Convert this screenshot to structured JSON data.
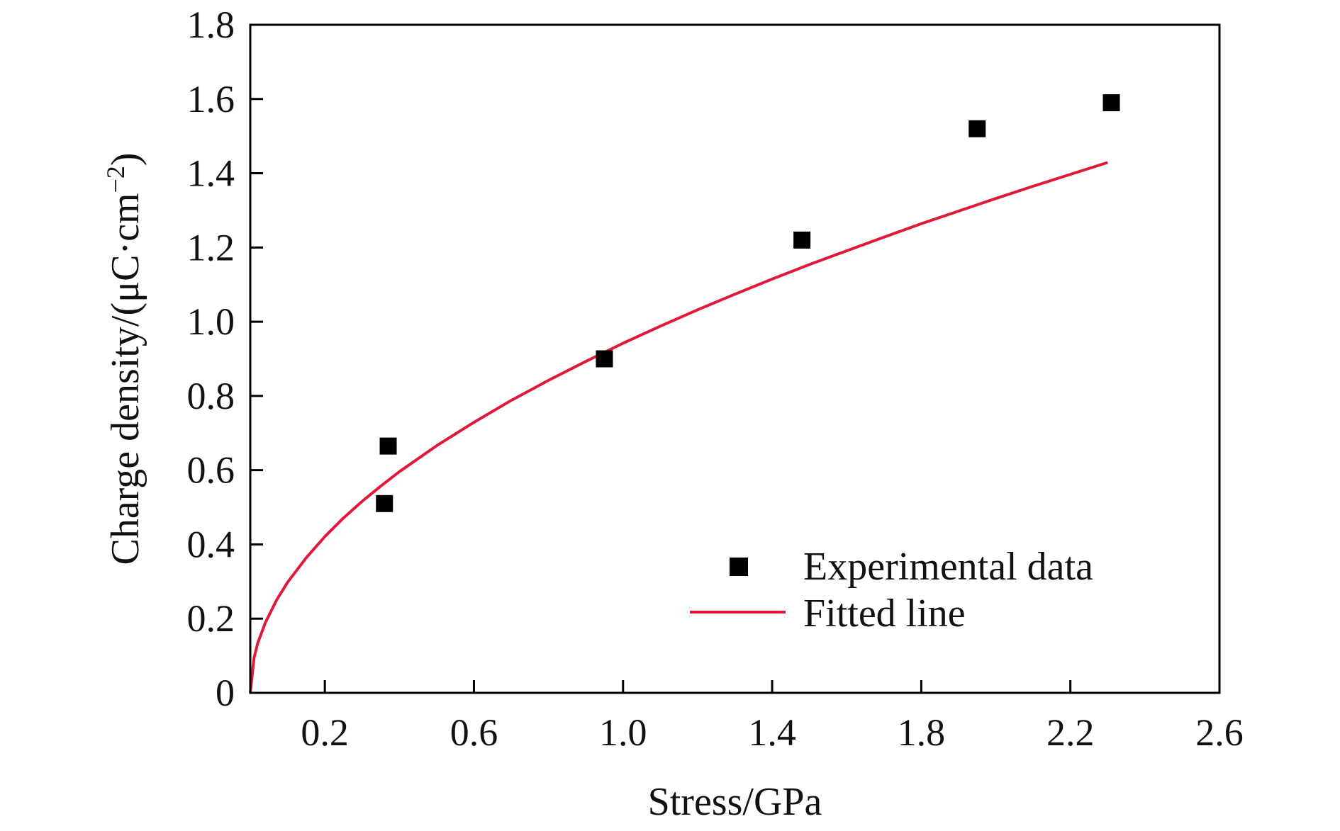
{
  "chart_data": {
    "type": "scatter",
    "title": "",
    "xlabel": "Stress/GPa",
    "ylabel_main": "Charge density/(μC·cm",
    "ylabel_sup": "−2",
    "ylabel_close": ")",
    "xlim": [
      0,
      2.6
    ],
    "ylim": [
      0,
      1.8
    ],
    "xticks": [
      0.2,
      0.6,
      1.0,
      1.4,
      1.8,
      2.2,
      2.6
    ],
    "xtick_labels": [
      "0.2",
      "0.6",
      "1.0",
      "1.4",
      "1.8",
      "2.2",
      "2.6"
    ],
    "yticks": [
      0,
      0.2,
      0.4,
      0.6,
      0.8,
      1.0,
      1.2,
      1.4,
      1.6,
      1.8
    ],
    "ytick_labels": [
      "0",
      "0.2",
      "0.4",
      "0.6",
      "0.8",
      "1.0",
      "1.2",
      "1.4",
      "1.6",
      "1.8"
    ],
    "grid": false,
    "legend_position": "bottom-right",
    "series": [
      {
        "name": "Experimental data",
        "kind": "scatter",
        "marker": "square",
        "color": "#000000",
        "x": [
          0.36,
          0.37,
          0.95,
          1.48,
          1.95,
          2.31
        ],
        "y": [
          0.51,
          0.665,
          0.9,
          1.22,
          1.52,
          1.59
        ]
      },
      {
        "name": "Fitted line",
        "kind": "line",
        "color": "#e0193a",
        "x": [
          0,
          0.01,
          0.02,
          0.04,
          0.07,
          0.1,
          0.15,
          0.2,
          0.25,
          0.3,
          0.35,
          0.4,
          0.5,
          0.6,
          0.7,
          0.8,
          0.9,
          1.0,
          1.1,
          1.2,
          1.3,
          1.4,
          1.5,
          1.6,
          1.7,
          1.8,
          1.9,
          2.0,
          2.1,
          2.2,
          2.3
        ],
        "y": [
          0,
          0.094,
          0.134,
          0.188,
          0.249,
          0.298,
          0.364,
          0.421,
          0.471,
          0.516,
          0.557,
          0.596,
          0.666,
          0.729,
          0.788,
          0.842,
          0.893,
          0.942,
          0.988,
          1.032,
          1.074,
          1.115,
          1.154,
          1.191,
          1.228,
          1.264,
          1.298,
          1.332,
          1.365,
          1.397,
          1.429
        ]
      }
    ]
  }
}
